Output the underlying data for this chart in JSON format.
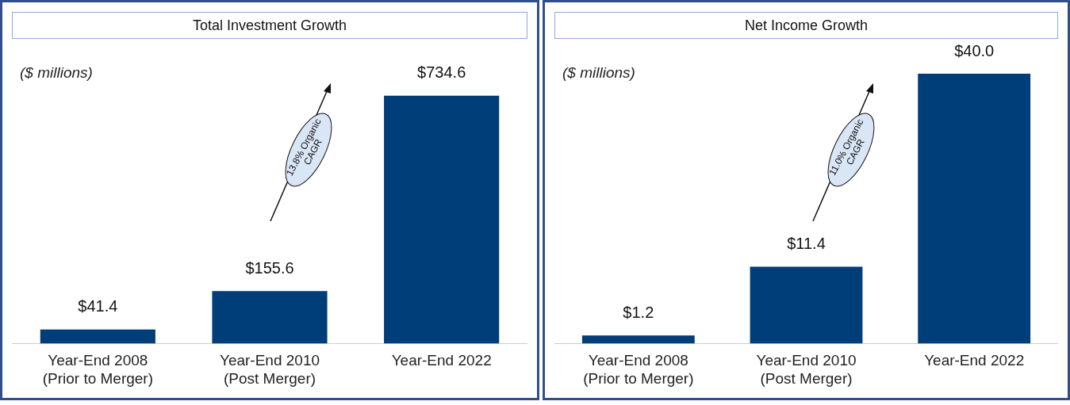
{
  "chart_data": [
    {
      "type": "bar",
      "title": "Total Investment Growth",
      "categories": [
        "Year-End 2008\n(Prior to Merger)",
        "Year-End 2010\n(Post Merger)",
        "Year-End 2022"
      ],
      "values": [
        41.4,
        155.6,
        734.6
      ],
      "color": "#003e7a",
      "value_labels": [
        "$41.4",
        "$155.6",
        "$734.6"
      ],
      "annotations": [
        "($ millions)",
        "13.8% Organic\nCAGR"
      ]
    },
    {
      "type": "bar",
      "title": "Net Income Growth",
      "categories": [
        "Year-End 2008\n(Prior to Merger)",
        "Year-End 2010\n(Post Merger)",
        "Year-End 2022"
      ],
      "values": [
        1.2,
        11.4,
        40.0
      ],
      "color": "#003e7a",
      "value_labels": [
        "$1.2",
        "$11.4",
        "$40.0"
      ],
      "annotations": [
        "($ millions)",
        "11.0% Organic\nCAGR"
      ]
    }
  ]
}
